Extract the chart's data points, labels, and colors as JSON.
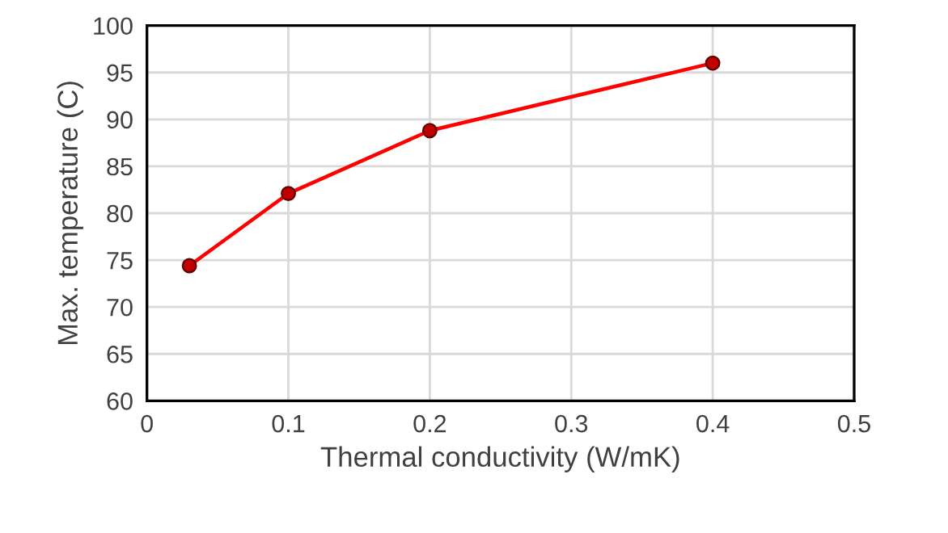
{
  "chart_data": {
    "type": "line",
    "xlabel": "Thermal conductivity (W/mK)",
    "ylabel": "Max. temperature (C)",
    "x": [
      0.03,
      0.1,
      0.2,
      0.4
    ],
    "series": [
      {
        "color": "#ff0000",
        "values": [
          74.4,
          82.1,
          88.8,
          96.0
        ]
      }
    ],
    "xlim": [
      0,
      0.5
    ],
    "xticks": [
      0,
      0.1,
      0.2,
      0.3,
      0.4,
      0.5
    ],
    "ylim": [
      60,
      100
    ],
    "yticks": [
      60,
      65,
      70,
      75,
      80,
      85,
      90,
      95,
      100
    ],
    "grid": true,
    "marker": "circle",
    "line_style": "solid"
  }
}
